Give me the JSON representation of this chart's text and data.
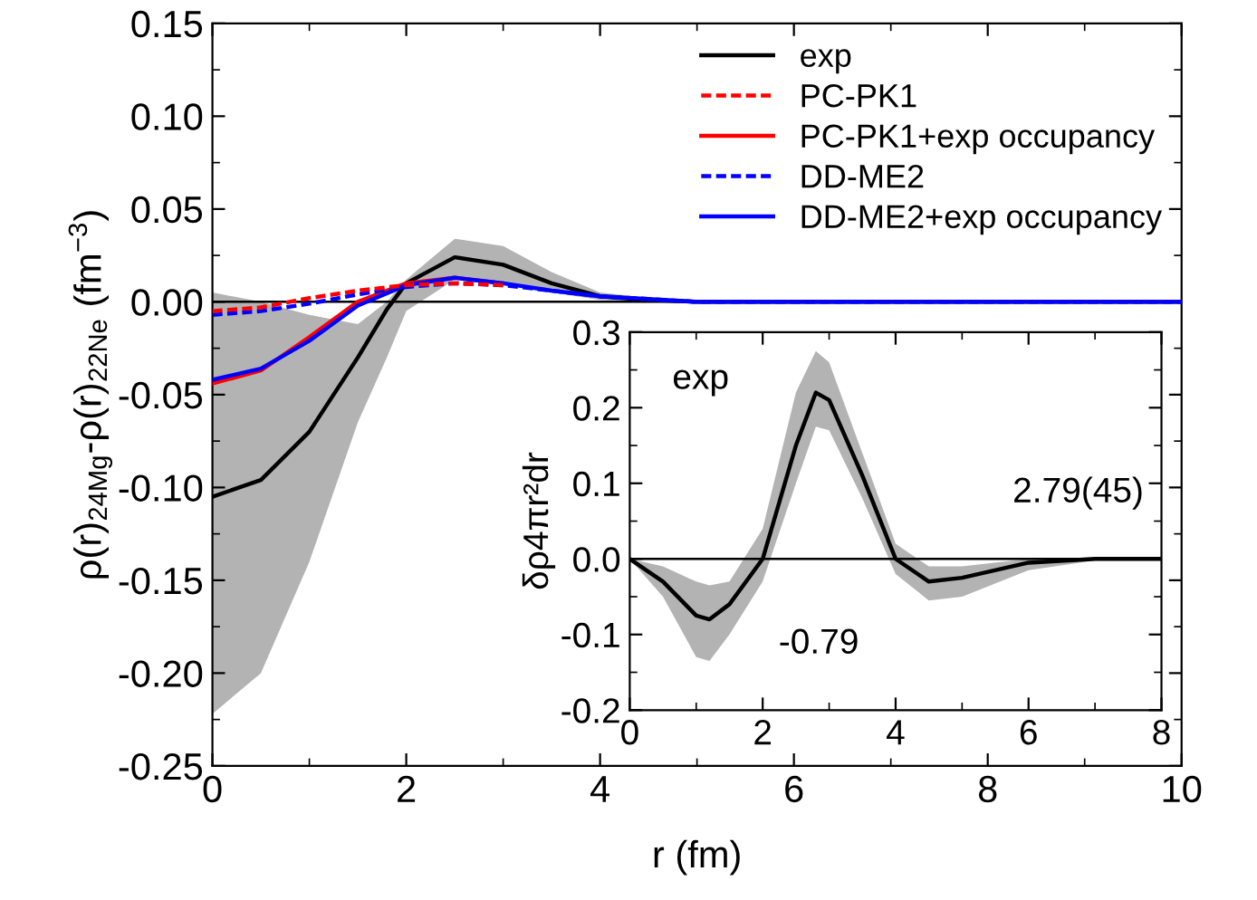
{
  "chart_data": [
    {
      "type": "line",
      "xlabel": "r (fm)",
      "ylabel": "ρ(r)$_{24Mg}$-ρ(r)$_{22Ne}$ (fm$^{−3}$)",
      "xlim": [
        0,
        10
      ],
      "xticks": [
        0,
        2,
        4,
        6,
        8,
        10
      ],
      "ylim": [
        -0.25,
        0.15
      ],
      "yticks": [
        {
          "value": -0.25,
          "label": "-0.25"
        },
        {
          "value": -0.2,
          "label": "-0.20"
        },
        {
          "value": -0.15,
          "label": "-0.15"
        },
        {
          "value": -0.1,
          "label": "-0.10"
        },
        {
          "value": -0.05,
          "label": "-0.05"
        },
        {
          "value": 0,
          "label": "0.00"
        },
        {
          "value": 0.05,
          "label": "0.05"
        },
        {
          "value": 0.1,
          "label": "0.10"
        },
        {
          "value": 0.15,
          "label": "0.15"
        }
      ],
      "legend": "top right",
      "grid": false,
      "ref_lines": [
        {
          "axis": "y",
          "value": 0,
          "color": "#000000"
        }
      ],
      "series": [
        {
          "name": "exp",
          "color": "#000000",
          "line_style": "solid",
          "x": [
            0,
            0.5,
            1,
            1.5,
            1.8,
            2,
            2.5,
            3,
            3.5,
            4,
            4.5,
            5,
            6,
            10
          ],
          "values": [
            -0.105,
            -0.096,
            -0.07,
            -0.03,
            -0.004,
            0.01,
            0.024,
            0.02,
            0.01,
            0.003,
            0.001,
            0,
            0,
            0
          ],
          "lower": [
            -0.222,
            -0.2,
            -0.14,
            -0.065,
            -0.03,
            -0.005,
            0.012,
            0.01,
            0.005,
            0.001,
            0,
            0,
            0,
            0
          ],
          "upper": [
            0.005,
            0.0,
            -0.007,
            -0.012,
            0.0,
            0.012,
            0.034,
            0.03,
            0.016,
            0.005,
            0.002,
            0.001,
            0,
            0
          ]
        },
        {
          "name": "PC-PK1",
          "color": "#ff0000",
          "line_style": "dashed",
          "x": [
            0,
            0.5,
            1,
            1.5,
            2,
            2.5,
            3
          ],
          "values": [
            -0.005,
            -0.003,
            0.002,
            0.006,
            0.009,
            0.01,
            0.009
          ]
        },
        {
          "name": "PC-PK1+exp occupancy",
          "color": "#ff0000",
          "line_style": "solid",
          "x": [
            0,
            0.5,
            1,
            1.5,
            2,
            2.5,
            3
          ],
          "values": [
            -0.044,
            -0.037,
            -0.019,
            0.0,
            0.01,
            0.013,
            0.01
          ]
        },
        {
          "name": "DD-ME2",
          "color": "#0000ff",
          "line_style": "dashed",
          "x": [
            0,
            0.5,
            1,
            1.5,
            2,
            2.5,
            3,
            3.5,
            4,
            5,
            10
          ],
          "values": [
            -0.007,
            -0.005,
            -0.001,
            0.004,
            0.008,
            0.01,
            0.009,
            0.006,
            0.003,
            0,
            0
          ]
        },
        {
          "name": "DD-ME2+exp occupancy",
          "color": "#0000ff",
          "line_style": "solid",
          "x": [
            0,
            0.5,
            1,
            1.5,
            2,
            2.5,
            3,
            3.5,
            4,
            5,
            10
          ],
          "values": [
            -0.042,
            -0.036,
            -0.021,
            -0.002,
            0.009,
            0.013,
            0.01,
            0.006,
            0.003,
            0,
            0
          ]
        }
      ]
    },
    {
      "type": "line",
      "ylabel": "δρ4πr²dr",
      "xlim": [
        0,
        8
      ],
      "xticks": [
        0,
        2,
        4,
        6,
        8
      ],
      "ylim": [
        -0.2,
        0.3
      ],
      "yticks": [
        {
          "value": -0.2,
          "label": "-0.2"
        },
        {
          "value": -0.1,
          "label": "-0.1"
        },
        {
          "value": 0,
          "label": "0.0"
        },
        {
          "value": 0.1,
          "label": "0.1"
        },
        {
          "value": 0.2,
          "label": "0.2"
        },
        {
          "value": 0.3,
          "label": "0.3"
        }
      ],
      "grid": false,
      "annotations": [
        "exp",
        "2.79(45)",
        "-0.79"
      ],
      "ref_lines": [
        {
          "axis": "y",
          "value": 0,
          "color": "#000000"
        }
      ],
      "series": [
        {
          "color": "#000000",
          "line_style": "solid",
          "x": [
            0,
            0.5,
            1,
            1.2,
            1.5,
            2,
            2.5,
            2.8,
            3,
            3.5,
            4,
            4.5,
            5,
            6,
            7,
            8
          ],
          "values": [
            0,
            -0.03,
            -0.075,
            -0.08,
            -0.06,
            0.0,
            0.15,
            0.22,
            0.21,
            0.11,
            0.0,
            -0.03,
            -0.025,
            -0.005,
            0,
            0
          ],
          "lower": [
            0,
            -0.05,
            -0.13,
            -0.135,
            -0.1,
            -0.03,
            0.1,
            0.175,
            0.17,
            0.08,
            -0.02,
            -0.055,
            -0.05,
            -0.015,
            -0.002,
            0
          ],
          "upper": [
            0,
            -0.01,
            -0.03,
            -0.035,
            -0.03,
            0.04,
            0.22,
            0.275,
            0.26,
            0.14,
            0.02,
            -0.01,
            -0.01,
            0,
            0,
            0
          ]
        }
      ]
    }
  ]
}
